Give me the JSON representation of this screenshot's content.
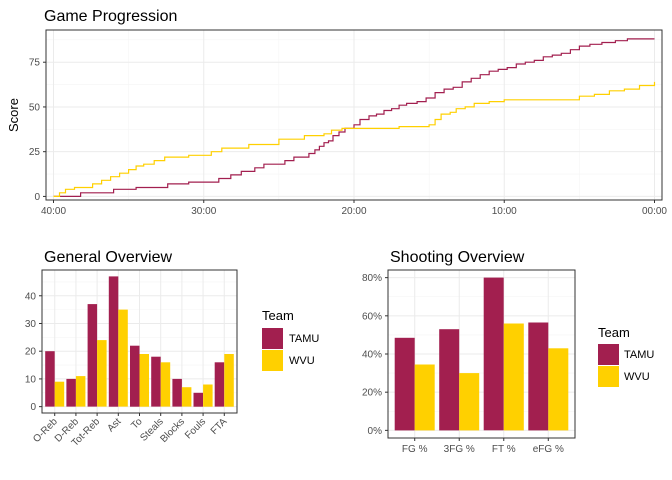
{
  "colors": {
    "TAMU": "#A21F4F",
    "WVU": "#FFD000",
    "grid_major": "#ebebeb",
    "grid_minor": "#f5f5f5",
    "border": "#333333"
  },
  "chart_data": [
    {
      "id": "game",
      "type": "line",
      "title": "Game Progression",
      "ylabel": "Score",
      "xlabel": "",
      "x_ticks": [
        "40:00",
        "30:00",
        "20:00",
        "10:00",
        "00:00"
      ],
      "x_tick_values": [
        40,
        30,
        20,
        10,
        0
      ],
      "x_reversed": true,
      "xlim": [
        40.5,
        -0.5
      ],
      "ylim": [
        -2,
        93
      ],
      "y_ticks": [
        0,
        25,
        50,
        75
      ],
      "grid": true,
      "series": [
        {
          "name": "TAMU",
          "points": [
            [
              40,
              0
            ],
            [
              39,
              0
            ],
            [
              38.2,
              2
            ],
            [
              37,
              2
            ],
            [
              36,
              4
            ],
            [
              35,
              4
            ],
            [
              34.5,
              5
            ],
            [
              33,
              5
            ],
            [
              32.4,
              7
            ],
            [
              31,
              8
            ],
            [
              30,
              8
            ],
            [
              29,
              10
            ],
            [
              28.2,
              12
            ],
            [
              27.5,
              14
            ],
            [
              26.6,
              16
            ],
            [
              26,
              18
            ],
            [
              25,
              18
            ],
            [
              24.6,
              20
            ],
            [
              24,
              22
            ],
            [
              23.4,
              22
            ],
            [
              23,
              24
            ],
            [
              22.6,
              26
            ],
            [
              22.3,
              28
            ],
            [
              22,
              30
            ],
            [
              21.7,
              31
            ],
            [
              21.4,
              34
            ],
            [
              21,
              36
            ],
            [
              20.6,
              38
            ],
            [
              20,
              40
            ],
            [
              19.6,
              43
            ],
            [
              19,
              45
            ],
            [
              18.5,
              46
            ],
            [
              18,
              48
            ],
            [
              17.5,
              49
            ],
            [
              17,
              51
            ],
            [
              16.5,
              52
            ],
            [
              15.8,
              53
            ],
            [
              15.2,
              55
            ],
            [
              14.6,
              58
            ],
            [
              14,
              60
            ],
            [
              13.4,
              61
            ],
            [
              12.8,
              64
            ],
            [
              12.2,
              66
            ],
            [
              11.6,
              68
            ],
            [
              11,
              70
            ],
            [
              10.4,
              71
            ],
            [
              9.8,
              72
            ],
            [
              9.2,
              74
            ],
            [
              8.6,
              75
            ],
            [
              8,
              76
            ],
            [
              7.4,
              78
            ],
            [
              6.8,
              79
            ],
            [
              6.2,
              80
            ],
            [
              5.6,
              82
            ],
            [
              5,
              84
            ],
            [
              4.3,
              85
            ],
            [
              3.5,
              86
            ],
            [
              2.6,
              87
            ],
            [
              1.8,
              88
            ],
            [
              1,
              88
            ],
            [
              0,
              88
            ]
          ]
        },
        {
          "name": "WVU",
          "points": [
            [
              40,
              0
            ],
            [
              39.6,
              2
            ],
            [
              39.2,
              4
            ],
            [
              38.6,
              5
            ],
            [
              38,
              5
            ],
            [
              37.4,
              7
            ],
            [
              36.8,
              9
            ],
            [
              36.2,
              11
            ],
            [
              35.6,
              13
            ],
            [
              35,
              15
            ],
            [
              34.5,
              17
            ],
            [
              34,
              18
            ],
            [
              33.3,
              20
            ],
            [
              32.6,
              22
            ],
            [
              32,
              22
            ],
            [
              31,
              23
            ],
            [
              30,
              23
            ],
            [
              29.5,
              25
            ],
            [
              28.8,
              27
            ],
            [
              28,
              27
            ],
            [
              27,
              29
            ],
            [
              26,
              29
            ],
            [
              25,
              32
            ],
            [
              24,
              32
            ],
            [
              23.3,
              34
            ],
            [
              22.5,
              34
            ],
            [
              22,
              35
            ],
            [
              21.5,
              37
            ],
            [
              20.8,
              38
            ],
            [
              20,
              38
            ],
            [
              19,
              38
            ],
            [
              18,
              38
            ],
            [
              17,
              39
            ],
            [
              16,
              39
            ],
            [
              15,
              40
            ],
            [
              14.6,
              43
            ],
            [
              14.2,
              46
            ],
            [
              13.6,
              47
            ],
            [
              13.2,
              49
            ],
            [
              12.6,
              50
            ],
            [
              12,
              52
            ],
            [
              11,
              53
            ],
            [
              10,
              54
            ],
            [
              9,
              54
            ],
            [
              8,
              54
            ],
            [
              7,
              54
            ],
            [
              6,
              54
            ],
            [
              5,
              56
            ],
            [
              4,
              57
            ],
            [
              3,
              59
            ],
            [
              2,
              60
            ],
            [
              1,
              62
            ],
            [
              0,
              64
            ]
          ]
        }
      ]
    },
    {
      "id": "general",
      "type": "bar",
      "title": "General Overview",
      "categories": [
        "O-Reb",
        "D-Reb",
        "Tot-Reb",
        "Ast",
        "To",
        "Steals",
        "Blocks",
        "Fouls",
        "FTA"
      ],
      "series": [
        {
          "name": "TAMU",
          "values": [
            20,
            10,
            37,
            47,
            22,
            18,
            10,
            5,
            16
          ]
        },
        {
          "name": "WVU",
          "values": [
            9,
            11,
            24,
            35,
            19,
            16,
            7,
            8,
            19
          ]
        }
      ],
      "y_ticks": [
        0,
        10,
        20,
        30,
        40
      ],
      "ylim": [
        -2.3,
        49.3
      ],
      "grid": true,
      "legend_title": "Team",
      "legend_position": "right",
      "legend_entries": [
        "TAMU",
        "WVU"
      ]
    },
    {
      "id": "shooting",
      "type": "bar",
      "title": "Shooting Overview",
      "categories": [
        "FG %",
        "3FG %",
        "FT %",
        "eFG %"
      ],
      "series": [
        {
          "name": "TAMU",
          "values": [
            0.485,
            0.53,
            0.8,
            0.565
          ]
        },
        {
          "name": "WVU",
          "values": [
            0.345,
            0.3,
            0.56,
            0.43
          ]
        }
      ],
      "y_ticks": [
        0,
        0.2,
        0.4,
        0.6,
        0.8
      ],
      "y_tick_labels": [
        "0%",
        "20%",
        "40%",
        "60%",
        "80%"
      ],
      "ylim": [
        -0.04,
        0.84
      ],
      "grid": true,
      "legend_title": "Team",
      "legend_position": "right",
      "legend_entries": [
        "TAMU",
        "WVU"
      ]
    }
  ]
}
